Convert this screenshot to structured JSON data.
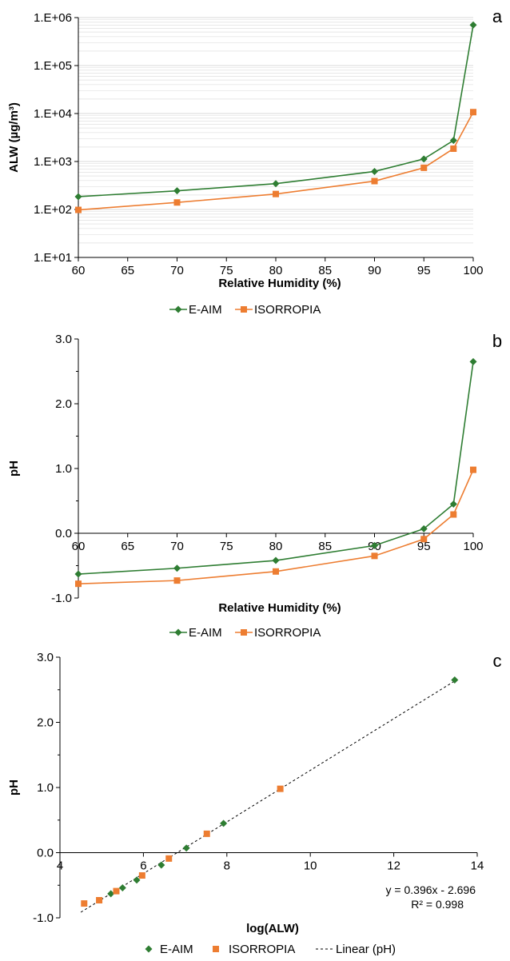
{
  "colors": {
    "eaim": "#2e7d32",
    "isorropia": "#ed7d31",
    "grid": "#d9d9d9",
    "axis": "#000000"
  },
  "chart_data": [
    {
      "panel": "a",
      "type": "line",
      "xlabel": "Relative Humidity (%)",
      "ylabel": "ALW (µg/m³)",
      "xlim": [
        60,
        100
      ],
      "ylim": [
        10,
        1000000
      ],
      "yscale": "log",
      "xticks": [
        "60",
        "65",
        "70",
        "75",
        "80",
        "85",
        "90",
        "95",
        "100"
      ],
      "yticks": [
        "1.E+01",
        "1.E+02",
        "1.E+03",
        "1.E+04",
        "1.E+05",
        "1.E+06"
      ],
      "grid": true,
      "legend": "bottom",
      "series": [
        {
          "name": "E-AIM",
          "marker": "diamond",
          "x": [
            60,
            70,
            80,
            90,
            95,
            98,
            100
          ],
          "y": [
            185,
            245,
            345,
            620,
            1130,
            2750,
            700000
          ]
        },
        {
          "name": "ISORROPIA",
          "marker": "square",
          "x": [
            60,
            70,
            80,
            90,
            95,
            98,
            100
          ],
          "y": [
            98,
            140,
            210,
            390,
            740,
            1850,
            10700
          ]
        }
      ]
    },
    {
      "panel": "b",
      "type": "line",
      "xlabel": "Relative Humidity (%)",
      "ylabel": "pH",
      "xlim": [
        60,
        100
      ],
      "ylim": [
        -1.0,
        3.0
      ],
      "xticks": [
        "60",
        "65",
        "70",
        "75",
        "80",
        "85",
        "90",
        "95",
        "100"
      ],
      "yticks": [
        "-1.0",
        "0.0",
        "1.0",
        "2.0",
        "3.0"
      ],
      "grid": false,
      "legend": "bottom",
      "series": [
        {
          "name": "E-AIM",
          "marker": "diamond",
          "x": [
            60,
            70,
            80,
            90,
            95,
            98,
            100
          ],
          "y": [
            -0.63,
            -0.54,
            -0.42,
            -0.19,
            0.07,
            0.45,
            2.65
          ]
        },
        {
          "name": "ISORROPIA",
          "marker": "square",
          "x": [
            60,
            70,
            80,
            90,
            95,
            98,
            100
          ],
          "y": [
            -0.78,
            -0.73,
            -0.59,
            -0.35,
            -0.09,
            0.29,
            0.98
          ]
        }
      ]
    },
    {
      "panel": "c",
      "type": "scatter",
      "xlabel": "log(ALW)",
      "ylabel": "pH",
      "xlim": [
        4,
        14
      ],
      "ylim": [
        -1.0,
        3.0
      ],
      "xticks": [
        "4",
        "6",
        "8",
        "10",
        "12",
        "14"
      ],
      "yticks": [
        "-1.0",
        "0.0",
        "1.0",
        "2.0",
        "3.0"
      ],
      "grid": false,
      "legend": "bottom",
      "series": [
        {
          "name": "E-AIM",
          "marker": "diamond",
          "x": [
            5.22,
            5.5,
            5.84,
            6.43,
            7.03,
            7.92,
            13.46
          ],
          "y": [
            -0.63,
            -0.54,
            -0.42,
            -0.19,
            0.07,
            0.45,
            2.65
          ]
        },
        {
          "name": "ISORROPIA",
          "marker": "square",
          "x": [
            4.58,
            4.94,
            5.35,
            5.97,
            6.61,
            7.52,
            9.28
          ],
          "y": [
            -0.78,
            -0.73,
            -0.59,
            -0.35,
            -0.09,
            0.29,
            0.98
          ]
        }
      ],
      "trendline": {
        "name": "Linear (pH)",
        "slope": 0.396,
        "intercept": -2.696,
        "equation": "y = 0.396x - 2.696",
        "r2": "R² = 0.998"
      }
    }
  ],
  "legend_labels": {
    "eaim": "E-AIM",
    "isorropia": "ISORROPIA",
    "trend": "Linear (pH)"
  }
}
